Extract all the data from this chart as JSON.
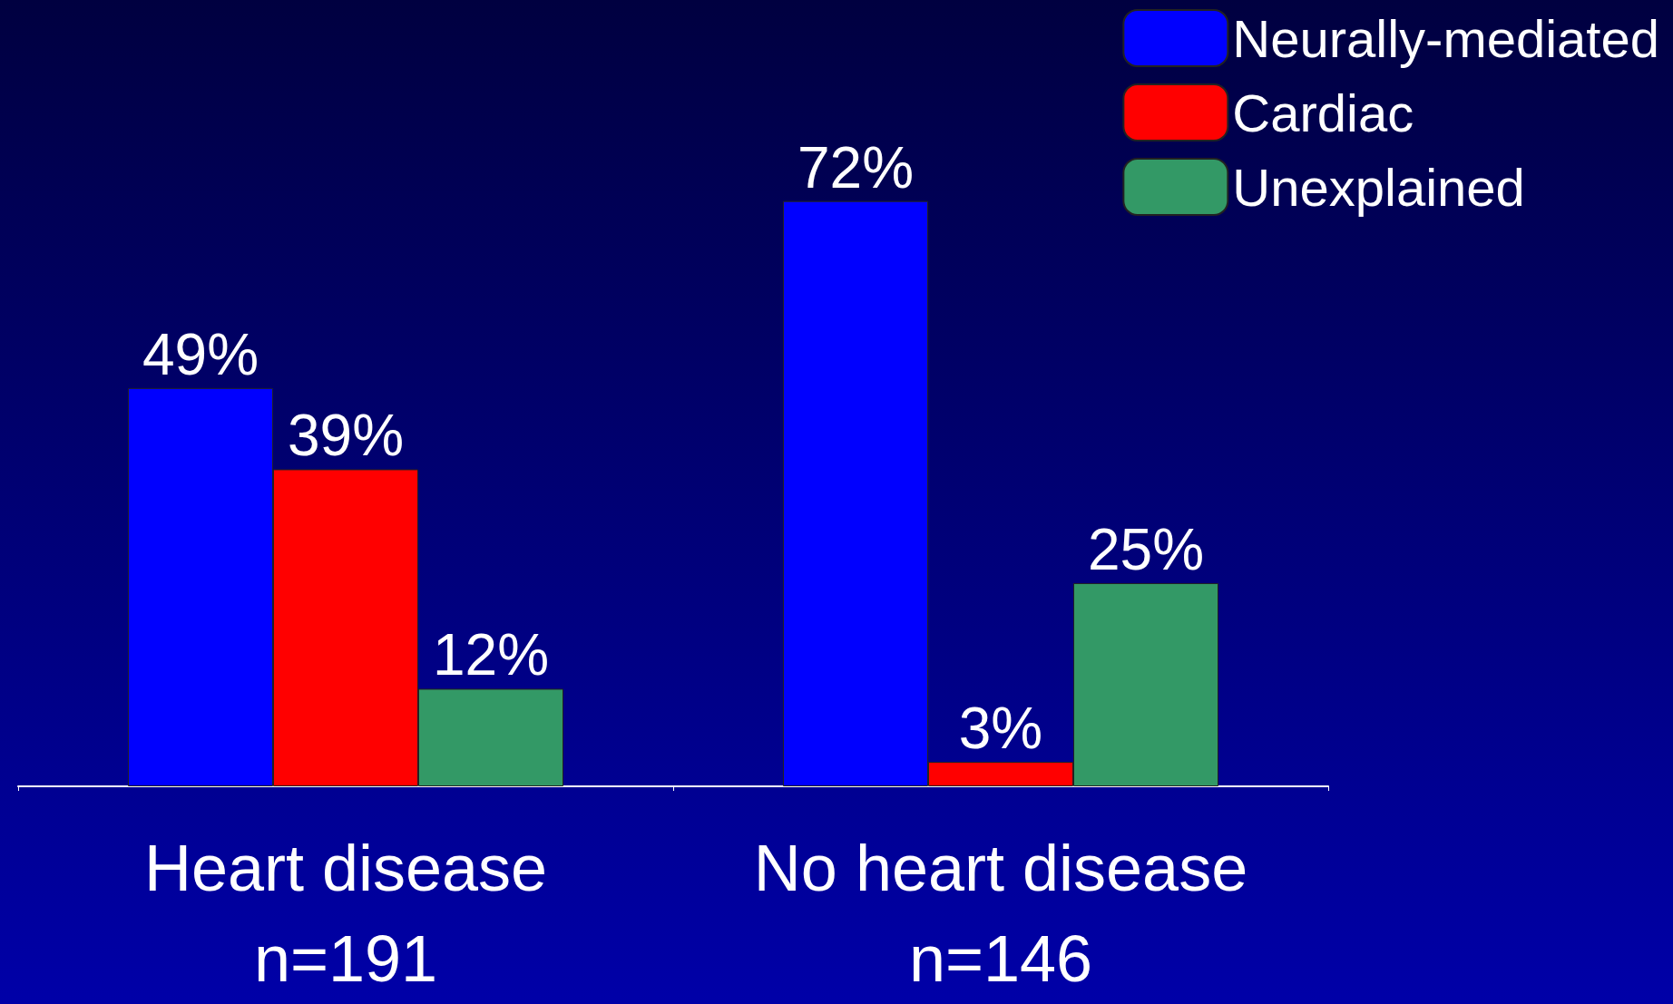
{
  "chart_data": {
    "type": "bar",
    "categories": [
      "Heart disease\nn=191",
      "No heart disease\nn=146"
    ],
    "series": [
      {
        "name": "Neurally-mediated",
        "color": "#0000ff",
        "values": [
          49,
          72
        ],
        "value_labels": [
          "49%",
          "72%"
        ]
      },
      {
        "name": "Cardiac",
        "color": "#ff0000",
        "values": [
          39,
          3
        ],
        "value_labels": [
          "39%",
          "3%"
        ]
      },
      {
        "name": "Unexplained",
        "color": "#339966",
        "values": [
          12,
          25
        ],
        "value_labels": [
          "12%",
          "25%"
        ]
      }
    ],
    "legend": "top right",
    "grid": false,
    "tick_labels": "x"
  }
}
